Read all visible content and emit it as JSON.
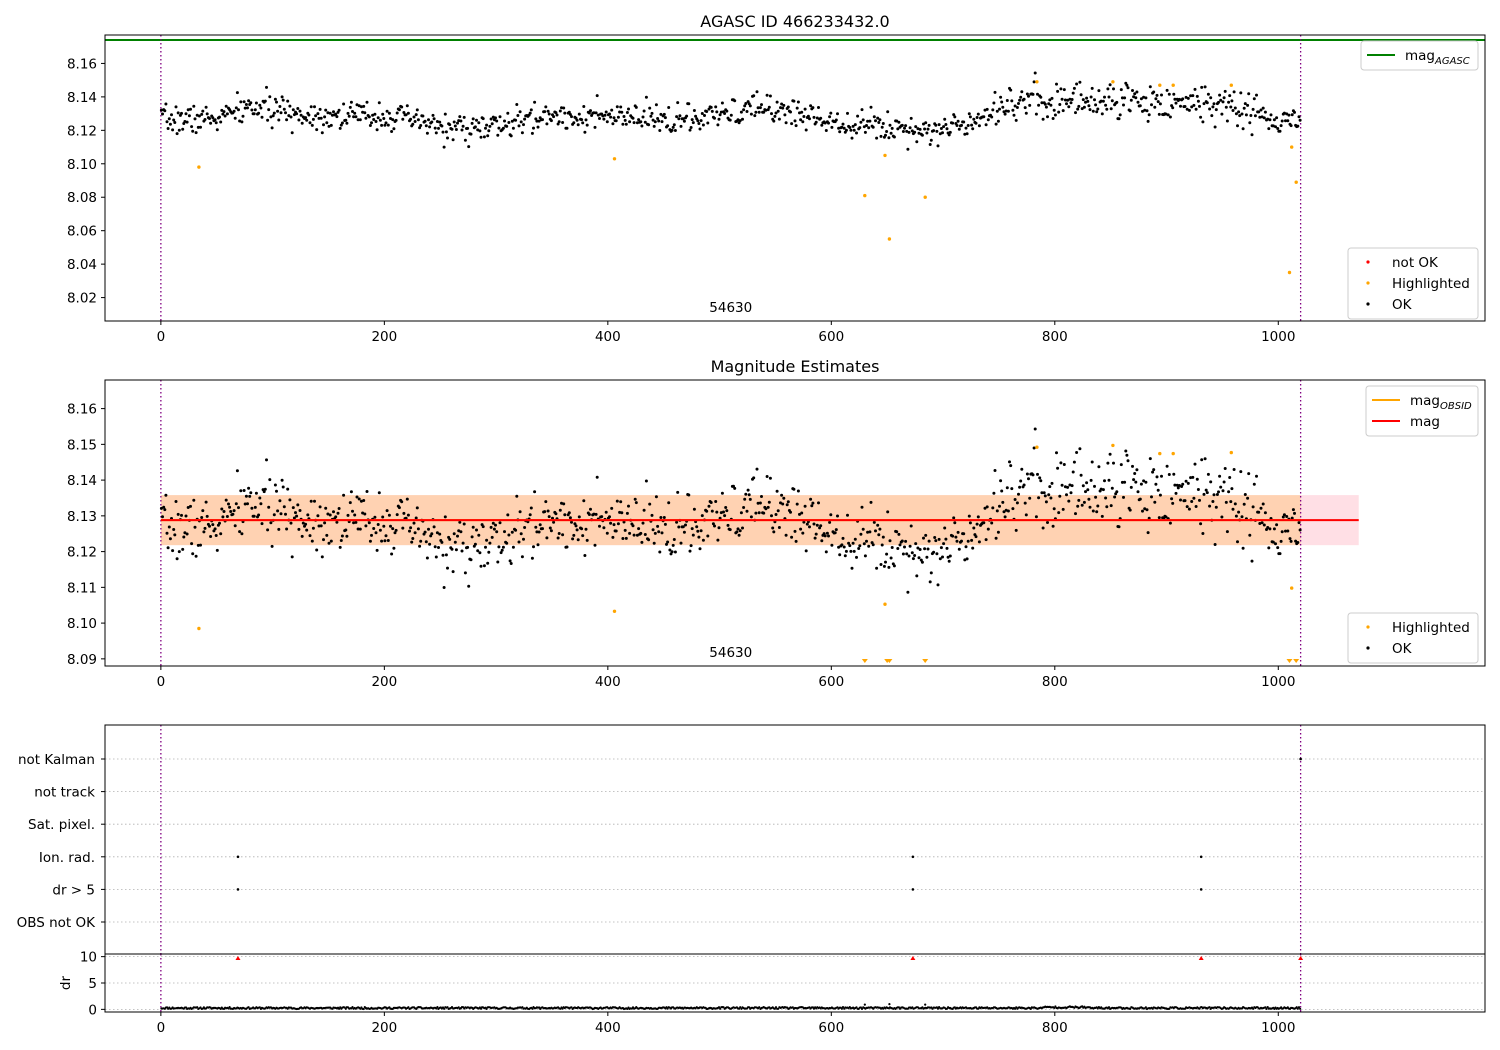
{
  "chart_data": [
    {
      "type": "scatter",
      "title": "AGASC ID 466233432.0",
      "xlim": [
        -50,
        1185
      ],
      "ylim": [
        8.006,
        8.177
      ],
      "xticks": [
        0,
        200,
        400,
        600,
        800,
        1000
      ],
      "yticks": [
        8.02,
        8.04,
        8.06,
        8.08,
        8.1,
        8.12,
        8.14,
        8.16
      ],
      "ytick_labels": [
        "8.02",
        "8.04",
        "8.06",
        "8.08",
        "8.10",
        "8.12",
        "8.14",
        "8.16"
      ],
      "obsid_boundaries": [
        0,
        1020
      ],
      "obsid_label": "54630",
      "lines": [
        {
          "name": "mag_AGASC",
          "y": 8.174,
          "color": "#008000"
        }
      ],
      "highlighted_points": [
        {
          "x": 34,
          "y": 8.098
        },
        {
          "x": 406,
          "y": 8.103
        },
        {
          "x": 630,
          "y": 8.081
        },
        {
          "x": 648,
          "y": 8.105
        },
        {
          "x": 652,
          "y": 8.055
        },
        {
          "x": 684,
          "y": 8.08
        },
        {
          "x": 784,
          "y": 8.149
        },
        {
          "x": 852,
          "y": 8.149
        },
        {
          "x": 894,
          "y": 8.147
        },
        {
          "x": 906,
          "y": 8.147
        },
        {
          "x": 958,
          "y": 8.147
        },
        {
          "x": 1010,
          "y": 8.035
        },
        {
          "x": 1012,
          "y": 8.11
        },
        {
          "x": 1016,
          "y": 8.089
        }
      ],
      "ok_trend": [
        {
          "x": 0,
          "y": 8.126
        },
        {
          "x": 50,
          "y": 8.127
        },
        {
          "x": 80,
          "y": 8.134
        },
        {
          "x": 130,
          "y": 8.129
        },
        {
          "x": 200,
          "y": 8.129
        },
        {
          "x": 260,
          "y": 8.121
        },
        {
          "x": 300,
          "y": 8.122
        },
        {
          "x": 350,
          "y": 8.129
        },
        {
          "x": 420,
          "y": 8.127
        },
        {
          "x": 480,
          "y": 8.126
        },
        {
          "x": 540,
          "y": 8.134
        },
        {
          "x": 600,
          "y": 8.126
        },
        {
          "x": 650,
          "y": 8.122
        },
        {
          "x": 700,
          "y": 8.12
        },
        {
          "x": 720,
          "y": 8.125
        },
        {
          "x": 760,
          "y": 8.137
        },
        {
          "x": 850,
          "y": 8.138
        },
        {
          "x": 950,
          "y": 8.136
        },
        {
          "x": 980,
          "y": 8.13
        },
        {
          "x": 1000,
          "y": 8.124
        },
        {
          "x": 1020,
          "y": 8.127
        }
      ],
      "ok_point_count": 1020,
      "ok_scatter": 0.006,
      "legends": [
        {
          "position": "upper right",
          "entries": [
            {
              "kind": "line",
              "label": "mag",
              "sub": "AGASC",
              "color": "#008000"
            }
          ]
        },
        {
          "position": "lower right",
          "entries": [
            {
              "kind": "dot",
              "label": "not OK",
              "color": "#ff0000"
            },
            {
              "kind": "dot",
              "label": "Highlighted",
              "color": "#ffa500"
            },
            {
              "kind": "dot",
              "label": "OK",
              "color": "#000000"
            }
          ]
        }
      ]
    },
    {
      "type": "scatter",
      "title": "Magnitude Estimates",
      "xlim": [
        -50,
        1185
      ],
      "ylim": [
        8.088,
        8.168
      ],
      "xticks": [
        0,
        200,
        400,
        600,
        800,
        1000
      ],
      "yticks": [
        8.09,
        8.1,
        8.11,
        8.12,
        8.13,
        8.14,
        8.15,
        8.16
      ],
      "ytick_labels": [
        "8.09",
        "8.10",
        "8.11",
        "8.12",
        "8.13",
        "8.14",
        "8.15",
        "8.16"
      ],
      "obsid_boundaries": [
        0,
        1020
      ],
      "obsid_label": "54630",
      "mag": 8.1288,
      "mag_band": [
        8.1218,
        8.1358
      ],
      "mag_obsid": 8.1288,
      "mag_obsid_band": [
        8.1218,
        8.1358
      ],
      "mag_line_range": [
        0,
        1072
      ],
      "mag_obsid_range": [
        0,
        1020
      ],
      "highlighted_points": [
        {
          "x": 34,
          "y": 8.0985
        },
        {
          "x": 406,
          "y": 8.1033
        },
        {
          "x": 648,
          "y": 8.1053
        },
        {
          "x": 784,
          "y": 8.1492
        },
        {
          "x": 852,
          "y": 8.1497
        },
        {
          "x": 894,
          "y": 8.1474
        },
        {
          "x": 906,
          "y": 8.1474
        },
        {
          "x": 958,
          "y": 8.1477
        },
        {
          "x": 1012,
          "y": 8.1098
        }
      ],
      "out_of_range_markers": [
        630,
        650,
        652,
        684,
        1010,
        1016
      ],
      "ok_trend": [
        {
          "x": 0,
          "y": 8.126
        },
        {
          "x": 50,
          "y": 8.127
        },
        {
          "x": 80,
          "y": 8.134
        },
        {
          "x": 130,
          "y": 8.129
        },
        {
          "x": 200,
          "y": 8.129
        },
        {
          "x": 260,
          "y": 8.121
        },
        {
          "x": 300,
          "y": 8.122
        },
        {
          "x": 350,
          "y": 8.129
        },
        {
          "x": 420,
          "y": 8.127
        },
        {
          "x": 480,
          "y": 8.126
        },
        {
          "x": 540,
          "y": 8.134
        },
        {
          "x": 600,
          "y": 8.126
        },
        {
          "x": 650,
          "y": 8.122
        },
        {
          "x": 700,
          "y": 8.12
        },
        {
          "x": 720,
          "y": 8.125
        },
        {
          "x": 760,
          "y": 8.137
        },
        {
          "x": 850,
          "y": 8.138
        },
        {
          "x": 950,
          "y": 8.136
        },
        {
          "x": 980,
          "y": 8.13
        },
        {
          "x": 1000,
          "y": 8.124
        },
        {
          "x": 1020,
          "y": 8.127
        }
      ],
      "ok_point_count": 1020,
      "ok_scatter": 0.006,
      "legends": [
        {
          "position": "upper right",
          "entries": [
            {
              "kind": "line",
              "label": "mag",
              "sub": "OBSID",
              "color": "#ffa500"
            },
            {
              "kind": "line",
              "label": "mag",
              "sub": "",
              "color": "#ff0000"
            }
          ]
        },
        {
          "position": "lower right",
          "entries": [
            {
              "kind": "dot",
              "label": "Highlighted",
              "color": "#ffa500"
            },
            {
              "kind": "dot",
              "label": "OK",
              "color": "#000000"
            }
          ]
        }
      ]
    },
    {
      "type": "scatter",
      "xlim": [
        -50,
        1185
      ],
      "categories": [
        "not Kalman",
        "not track",
        "Sat. pixel.",
        "Ion. rad.",
        "dr > 5",
        "OBS not OK"
      ],
      "flag_points": [
        {
          "flag": "Ion. rad.",
          "x": [
            69,
            673,
            931
          ]
        },
        {
          "flag": "dr > 5",
          "x": [
            69,
            673,
            931
          ]
        },
        {
          "flag": "not Kalman",
          "x": [
            1020
          ]
        }
      ],
      "obsid_boundaries": [
        0,
        1020
      ],
      "dr_subplot": {
        "ylabel": "dr",
        "ylim": [
          -0.5,
          10.5
        ],
        "yticks": [
          0,
          5,
          10
        ],
        "ytick_labels": [
          "0",
          "5",
          "10"
        ],
        "xticks": [
          0,
          200,
          400,
          600,
          800,
          1000
        ],
        "typical_dr": 0.25,
        "dr_above_range_x": [
          69,
          673,
          931,
          1020
        ],
        "dr_outliers": [
          {
            "x": 630,
            "y": 0.9
          },
          {
            "x": 652,
            "y": 1.0
          },
          {
            "x": 684,
            "y": 0.9
          }
        ]
      }
    }
  ]
}
